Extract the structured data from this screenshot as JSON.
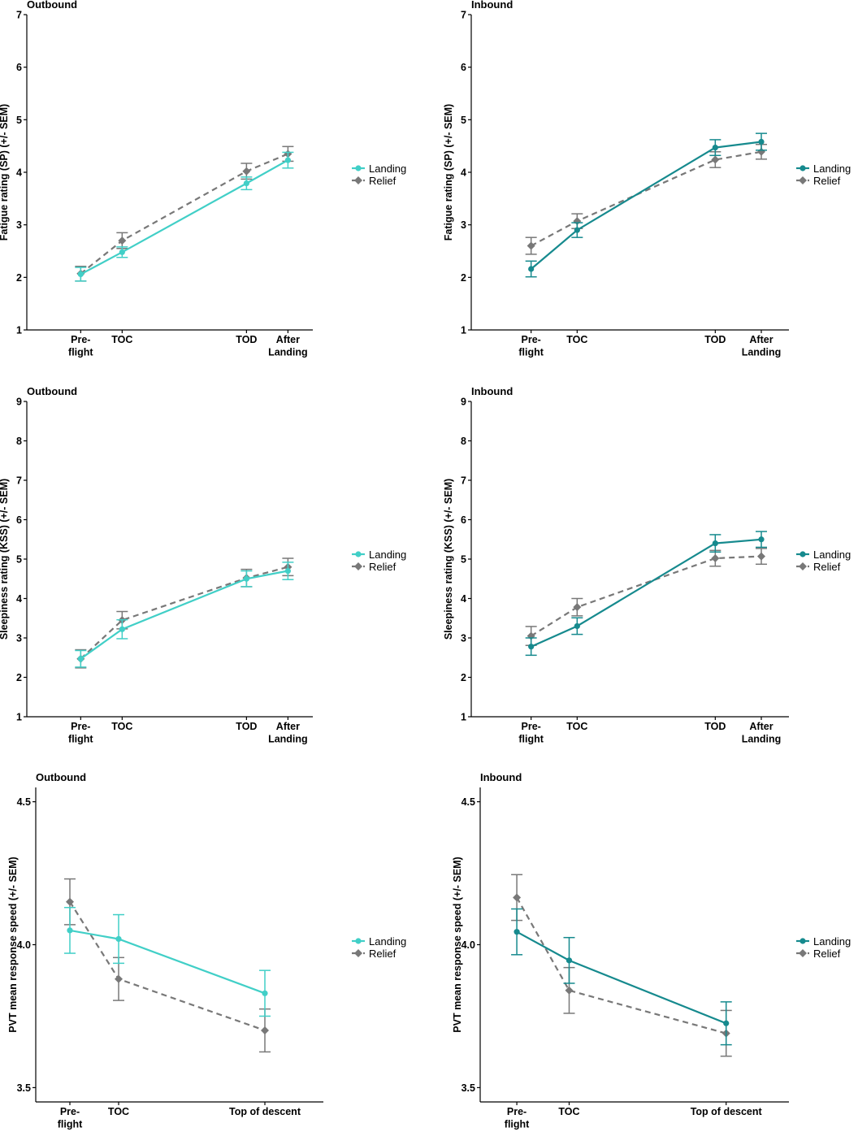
{
  "chart_data": [
    {
      "type": "line",
      "title": "Outbound",
      "ylabel": "Fatigue rating (SP) (+/- SEM)",
      "ylim": [
        1,
        7
      ],
      "yticks": [
        1,
        2,
        3,
        4,
        5,
        6,
        7
      ],
      "ytick_labels": [
        "1",
        "2",
        "3",
        "4",
        "5",
        "6",
        "7"
      ],
      "x_positions": [
        2,
        3,
        6,
        7
      ],
      "x_range": [
        0.7,
        7.6
      ],
      "tick_labels": [
        [
          "Pre-",
          "flight"
        ],
        [
          "TOC"
        ],
        [
          "TOD"
        ],
        [
          "After",
          "Landing"
        ]
      ],
      "landing_color": "#41CFC7",
      "series": [
        {
          "name": "Landing",
          "values": [
            2.06,
            2.48,
            3.79,
            4.23
          ],
          "errors": [
            0.13,
            0.1,
            0.12,
            0.15
          ]
        },
        {
          "name": "Relief",
          "values": [
            2.07,
            2.7,
            4.02,
            4.35
          ],
          "errors": [
            0.14,
            0.15,
            0.15,
            0.14
          ]
        }
      ]
    },
    {
      "type": "line",
      "title": "Inbound",
      "ylabel": "Fatigue rating (SP) (+/- SEM)",
      "ylim": [
        1,
        7
      ],
      "yticks": [
        1,
        2,
        3,
        4,
        5,
        6,
        7
      ],
      "ytick_labels": [
        "1",
        "2",
        "3",
        "4",
        "5",
        "6",
        "7"
      ],
      "x_positions": [
        2,
        3,
        6,
        7
      ],
      "x_range": [
        0.7,
        7.6
      ],
      "tick_labels": [
        [
          "Pre-",
          "flight"
        ],
        [
          "TOC"
        ],
        [
          "TOD"
        ],
        [
          "After",
          "Landing"
        ]
      ],
      "landing_color": "#168A8E",
      "series": [
        {
          "name": "Landing",
          "values": [
            2.16,
            2.9,
            4.47,
            4.58
          ],
          "errors": [
            0.15,
            0.14,
            0.15,
            0.16
          ]
        },
        {
          "name": "Relief",
          "values": [
            2.6,
            3.07,
            4.24,
            4.39
          ],
          "errors": [
            0.16,
            0.14,
            0.15,
            0.14
          ]
        }
      ]
    },
    {
      "type": "line",
      "title": "Outbound",
      "ylabel": "Sleepiness rating (KSS) (+/- SEM)",
      "ylim": [
        1,
        9
      ],
      "yticks": [
        1,
        2,
        3,
        4,
        5,
        6,
        7,
        8,
        9
      ],
      "ytick_labels": [
        "1",
        "2",
        "3",
        "4",
        "5",
        "6",
        "7",
        "8",
        "9"
      ],
      "x_positions": [
        2,
        3,
        6,
        7
      ],
      "x_range": [
        0.7,
        7.6
      ],
      "tick_labels": [
        [
          "Pre-",
          "flight"
        ],
        [
          "TOC"
        ],
        [
          "TOD"
        ],
        [
          "After",
          "Landing"
        ]
      ],
      "landing_color": "#41CFC7",
      "series": [
        {
          "name": "Landing",
          "values": [
            2.47,
            3.22,
            4.5,
            4.7
          ],
          "errors": [
            0.21,
            0.24,
            0.2,
            0.22
          ]
        },
        {
          "name": "Relief",
          "values": [
            2.47,
            3.45,
            4.52,
            4.8
          ],
          "errors": [
            0.23,
            0.22,
            0.22,
            0.22
          ]
        }
      ]
    },
    {
      "type": "line",
      "title": "Inbound",
      "ylabel": "Sleepiness rating (KSS) (+/- SEM)",
      "ylim": [
        1,
        9
      ],
      "yticks": [
        1,
        2,
        3,
        4,
        5,
        6,
        7,
        8,
        9
      ],
      "ytick_labels": [
        "1",
        "2",
        "3",
        "4",
        "5",
        "6",
        "7",
        "8",
        "9"
      ],
      "x_positions": [
        2,
        3,
        6,
        7
      ],
      "x_range": [
        0.7,
        7.6
      ],
      "tick_labels": [
        [
          "Pre-",
          "flight"
        ],
        [
          "TOC"
        ],
        [
          "TOD"
        ],
        [
          "After",
          "Landing"
        ]
      ],
      "landing_color": "#168A8E",
      "series": [
        {
          "name": "Landing",
          "values": [
            2.78,
            3.3,
            5.4,
            5.5
          ],
          "errors": [
            0.22,
            0.21,
            0.22,
            0.2
          ]
        },
        {
          "name": "Relief",
          "values": [
            3.05,
            3.78,
            5.02,
            5.07
          ],
          "errors": [
            0.24,
            0.22,
            0.2,
            0.2
          ]
        }
      ]
    },
    {
      "type": "line",
      "title": "Outbound",
      "ylabel": "PVT mean response speed (+/- SEM)",
      "ylim": [
        3.45,
        4.55
      ],
      "yticks": [
        3.5,
        4.0,
        4.5
      ],
      "ytick_labels": [
        "3.5",
        "4.0",
        "4.5"
      ],
      "x_positions": [
        1,
        2,
        5
      ],
      "x_range": [
        0.3,
        6.2
      ],
      "tick_labels": [
        [
          "Pre-",
          "flight"
        ],
        [
          "TOC"
        ],
        [
          "Top of descent"
        ]
      ],
      "landing_color": "#41CFC7",
      "series": [
        {
          "name": "Landing",
          "values": [
            4.05,
            4.02,
            3.83
          ],
          "errors": [
            0.08,
            0.085,
            0.08
          ]
        },
        {
          "name": "Relief",
          "values": [
            4.15,
            3.88,
            3.7
          ],
          "errors": [
            0.08,
            0.075,
            0.075
          ]
        }
      ]
    },
    {
      "type": "line",
      "title": "Inbound",
      "ylabel": "PVT mean response speed (+/- SEM)",
      "ylim": [
        3.45,
        4.55
      ],
      "yticks": [
        3.5,
        4.0,
        4.5
      ],
      "ytick_labels": [
        "3.5",
        "4.0",
        "4.5"
      ],
      "x_positions": [
        1,
        2,
        5
      ],
      "x_range": [
        0.3,
        6.2
      ],
      "tick_labels": [
        [
          "Pre-",
          "flight"
        ],
        [
          "TOC"
        ],
        [
          "Top of descent"
        ]
      ],
      "landing_color": "#168A8E",
      "series": [
        {
          "name": "Landing",
          "values": [
            4.045,
            3.945,
            3.725
          ],
          "errors": [
            0.08,
            0.08,
            0.075
          ]
        },
        {
          "name": "Relief",
          "values": [
            4.165,
            3.84,
            3.69
          ],
          "errors": [
            0.08,
            0.08,
            0.08
          ]
        }
      ]
    }
  ],
  "relief_color": "#787878",
  "legend": {
    "landing": "Landing",
    "relief": "Relief"
  }
}
